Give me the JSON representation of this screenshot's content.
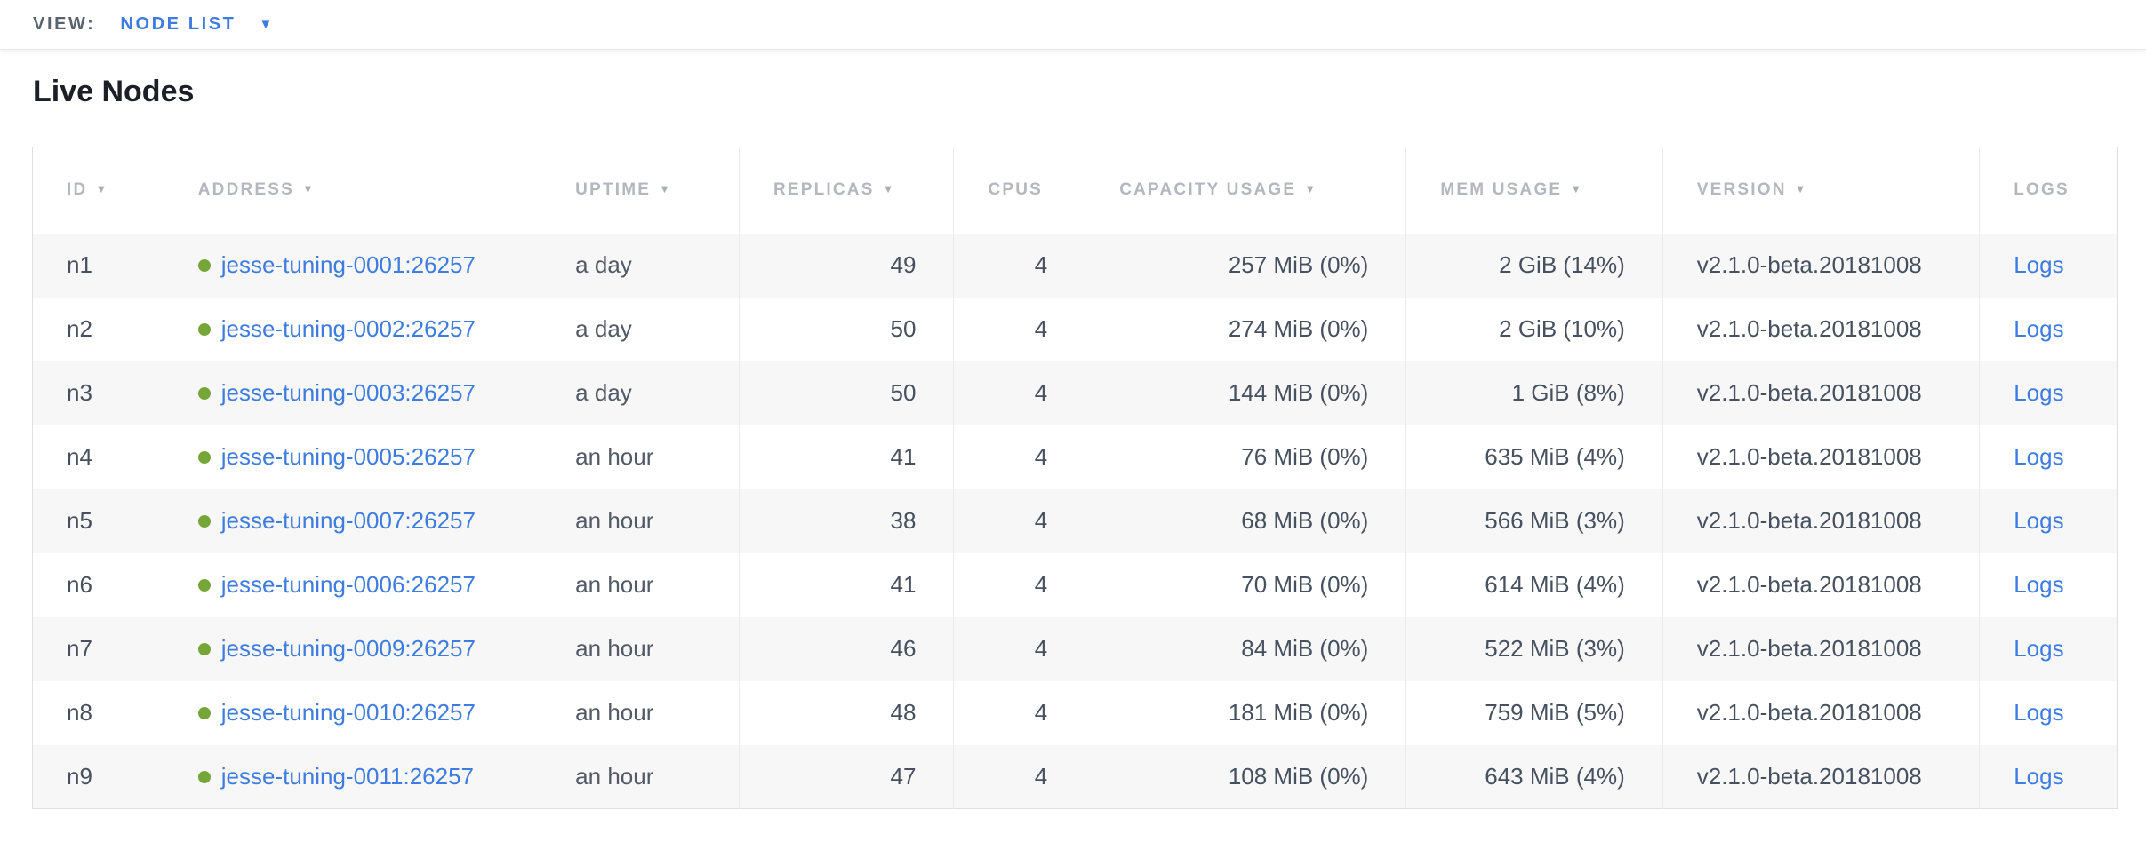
{
  "view_bar": {
    "label": "VIEW:",
    "selected_view": "NODE LIST",
    "caret_icon": "▼"
  },
  "page": {
    "title": "Live Nodes"
  },
  "colors": {
    "link_blue": "#3e7ce1",
    "live_dot_green": "#76a63a",
    "header_gray": "#b4b8be",
    "body_text": "#46505f",
    "row_alt_bg": "#f7f7f8"
  },
  "table": {
    "sort_icon": "▼",
    "columns": [
      {
        "key": "id",
        "label": "ID",
        "sortable": true,
        "align": "left"
      },
      {
        "key": "address",
        "label": "ADDRESS",
        "sortable": true,
        "align": "left"
      },
      {
        "key": "uptime",
        "label": "UPTIME",
        "sortable": true,
        "align": "left"
      },
      {
        "key": "replicas",
        "label": "REPLICAS",
        "sortable": true,
        "align": "right"
      },
      {
        "key": "cpus",
        "label": "CPUS",
        "sortable": false,
        "align": "right"
      },
      {
        "key": "capacity",
        "label": "CAPACITY USAGE",
        "sortable": true,
        "align": "right"
      },
      {
        "key": "mem",
        "label": "MEM USAGE",
        "sortable": true,
        "align": "right"
      },
      {
        "key": "version",
        "label": "VERSION",
        "sortable": true,
        "align": "left"
      },
      {
        "key": "logs",
        "label": "LOGS",
        "sortable": false,
        "align": "left"
      }
    ],
    "rows": [
      {
        "id": "n1",
        "address": "jesse-tuning-0001:26257",
        "uptime": "a day",
        "replicas": "49",
        "cpus": "4",
        "capacity": "257 MiB (0%)",
        "mem": "2 GiB (14%)",
        "version": "v2.1.0-beta.20181008",
        "logs": "Logs"
      },
      {
        "id": "n2",
        "address": "jesse-tuning-0002:26257",
        "uptime": "a day",
        "replicas": "50",
        "cpus": "4",
        "capacity": "274 MiB (0%)",
        "mem": "2 GiB (10%)",
        "version": "v2.1.0-beta.20181008",
        "logs": "Logs"
      },
      {
        "id": "n3",
        "address": "jesse-tuning-0003:26257",
        "uptime": "a day",
        "replicas": "50",
        "cpus": "4",
        "capacity": "144 MiB (0%)",
        "mem": "1 GiB (8%)",
        "version": "v2.1.0-beta.20181008",
        "logs": "Logs"
      },
      {
        "id": "n4",
        "address": "jesse-tuning-0005:26257",
        "uptime": "an hour",
        "replicas": "41",
        "cpus": "4",
        "capacity": "76 MiB (0%)",
        "mem": "635 MiB (4%)",
        "version": "v2.1.0-beta.20181008",
        "logs": "Logs"
      },
      {
        "id": "n5",
        "address": "jesse-tuning-0007:26257",
        "uptime": "an hour",
        "replicas": "38",
        "cpus": "4",
        "capacity": "68 MiB (0%)",
        "mem": "566 MiB (3%)",
        "version": "v2.1.0-beta.20181008",
        "logs": "Logs"
      },
      {
        "id": "n6",
        "address": "jesse-tuning-0006:26257",
        "uptime": "an hour",
        "replicas": "41",
        "cpus": "4",
        "capacity": "70 MiB (0%)",
        "mem": "614 MiB (4%)",
        "version": "v2.1.0-beta.20181008",
        "logs": "Logs"
      },
      {
        "id": "n7",
        "address": "jesse-tuning-0009:26257",
        "uptime": "an hour",
        "replicas": "46",
        "cpus": "4",
        "capacity": "84 MiB (0%)",
        "mem": "522 MiB (3%)",
        "version": "v2.1.0-beta.20181008",
        "logs": "Logs"
      },
      {
        "id": "n8",
        "address": "jesse-tuning-0010:26257",
        "uptime": "an hour",
        "replicas": "48",
        "cpus": "4",
        "capacity": "181 MiB (0%)",
        "mem": "759 MiB (5%)",
        "version": "v2.1.0-beta.20181008",
        "logs": "Logs"
      },
      {
        "id": "n9",
        "address": "jesse-tuning-0011:26257",
        "uptime": "an hour",
        "replicas": "47",
        "cpus": "4",
        "capacity": "108 MiB (0%)",
        "mem": "643 MiB (4%)",
        "version": "v2.1.0-beta.20181008",
        "logs": "Logs"
      }
    ]
  }
}
